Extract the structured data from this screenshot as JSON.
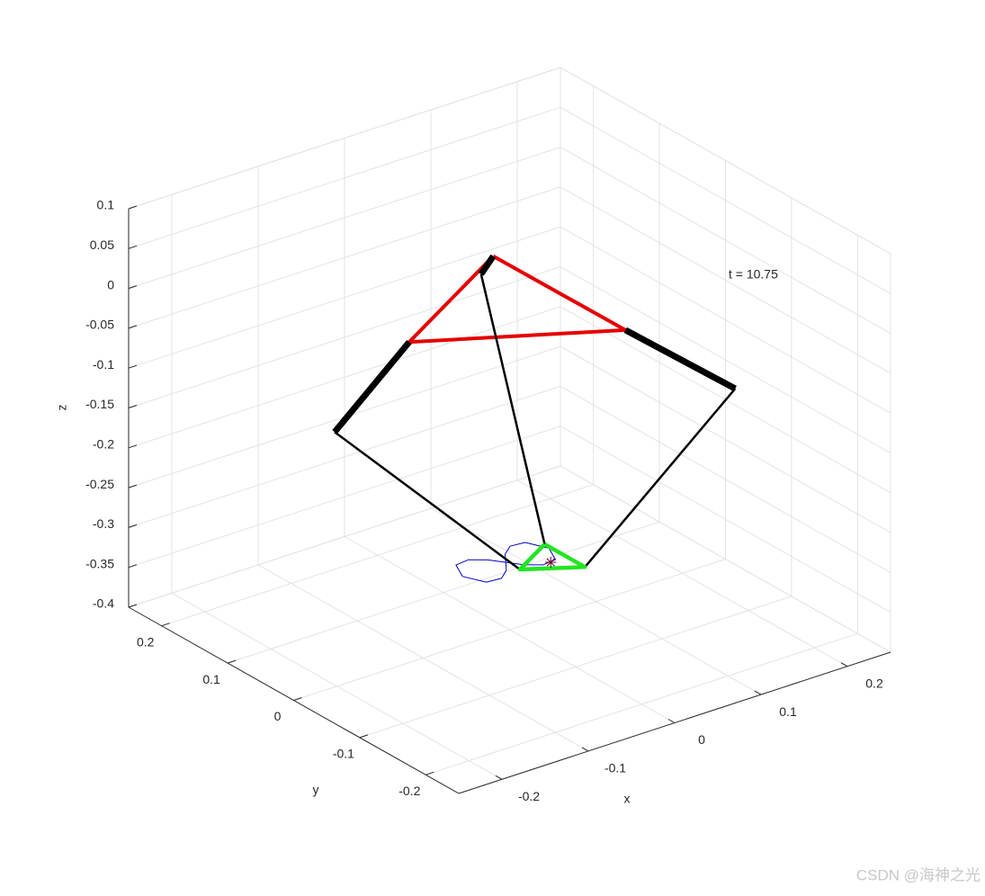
{
  "chart_data": {
    "type": "line3d",
    "xlabel": "x",
    "ylabel": "y",
    "zlabel": "z",
    "annotation": "t = 10.75",
    "watermark": "CSDN @海神之光",
    "xlim": [
      -0.25,
      0.25
    ],
    "ylim": [
      -0.25,
      0.25
    ],
    "zlim": [
      -0.4,
      0.1
    ],
    "xticks": [
      -0.2,
      -0.1,
      0,
      0.1,
      0.2
    ],
    "yticks": [
      -0.2,
      -0.1,
      0,
      0.1,
      0.2
    ],
    "zticks": [
      -0.4,
      -0.35,
      -0.3,
      -0.25,
      -0.2,
      -0.15,
      -0.1,
      -0.05,
      0,
      0.05,
      0.1
    ],
    "grid": true,
    "series": [
      {
        "color": "#0000cc",
        "width": 1,
        "x": [
          0.083,
          0.073,
          0.057,
          0.043,
          0.033,
          0.023,
          0.009,
          -0.007,
          -0.017,
          -0.007,
          0.009,
          0.023,
          0.033,
          0.043,
          0.057,
          0.073,
          0.083
        ],
        "y": [
          0.049,
          0.072,
          0.074,
          0.063,
          0.049,
          0.035,
          0.024,
          0.026,
          0.049,
          0.072,
          0.074,
          0.063,
          0.049,
          0.035,
          0.024,
          0.026,
          0.049
        ],
        "z": [
          -0.35,
          -0.35,
          -0.35,
          -0.35,
          -0.35,
          -0.35,
          -0.35,
          -0.35,
          -0.35,
          -0.35,
          -0.35,
          -0.35,
          -0.35,
          -0.35,
          -0.35,
          -0.35,
          -0.35
        ]
      },
      {
        "color": "#e50000",
        "width": 4,
        "x": [
          0.059,
          -0.114,
          0.06,
          0.059
        ],
        "y": [
          0.102,
          0.003,
          -0.097,
          0.102
        ],
        "z": [
          0,
          0,
          0,
          0
        ]
      },
      {
        "color": "#000000",
        "width": 7,
        "x": [
          -0.114,
          -0.182,
          null,
          0.06,
          0.168,
          null,
          0.059,
          0.058
        ],
        "y": [
          0.003,
          0.027,
          null,
          -0.097,
          -0.122,
          null,
          0.102,
          0.119
        ],
        "z": [
          0,
          -0.1,
          null,
          0,
          -0.1,
          null,
          0,
          -0.03
        ]
      },
      {
        "color": "#000000",
        "width": 2.5,
        "x": [
          -0.182,
          0.034,
          null,
          0.168,
          0.085,
          null,
          0.058,
          0.085
        ],
        "y": [
          0.027,
          0.029,
          null,
          -0.122,
          -0.003,
          null,
          0.119,
          0.058
        ],
        "z": [
          -0.1,
          -0.35,
          null,
          -0.1,
          -0.35,
          null,
          -0.03,
          -0.35
        ]
      },
      {
        "color": "#22e522",
        "width": 4.5,
        "x": [
          0.085,
          0.034,
          0.085,
          0.085
        ],
        "y": [
          0.058,
          0.029,
          -0.003,
          0.058
        ],
        "z": [
          -0.35,
          -0.35,
          -0.35,
          -0.35
        ]
      },
      {
        "color": "#660022",
        "width": 1,
        "marker": "*",
        "x": [
          0.066
        ],
        "y": [
          0.024
        ],
        "z": [
          -0.35
        ]
      }
    ]
  }
}
